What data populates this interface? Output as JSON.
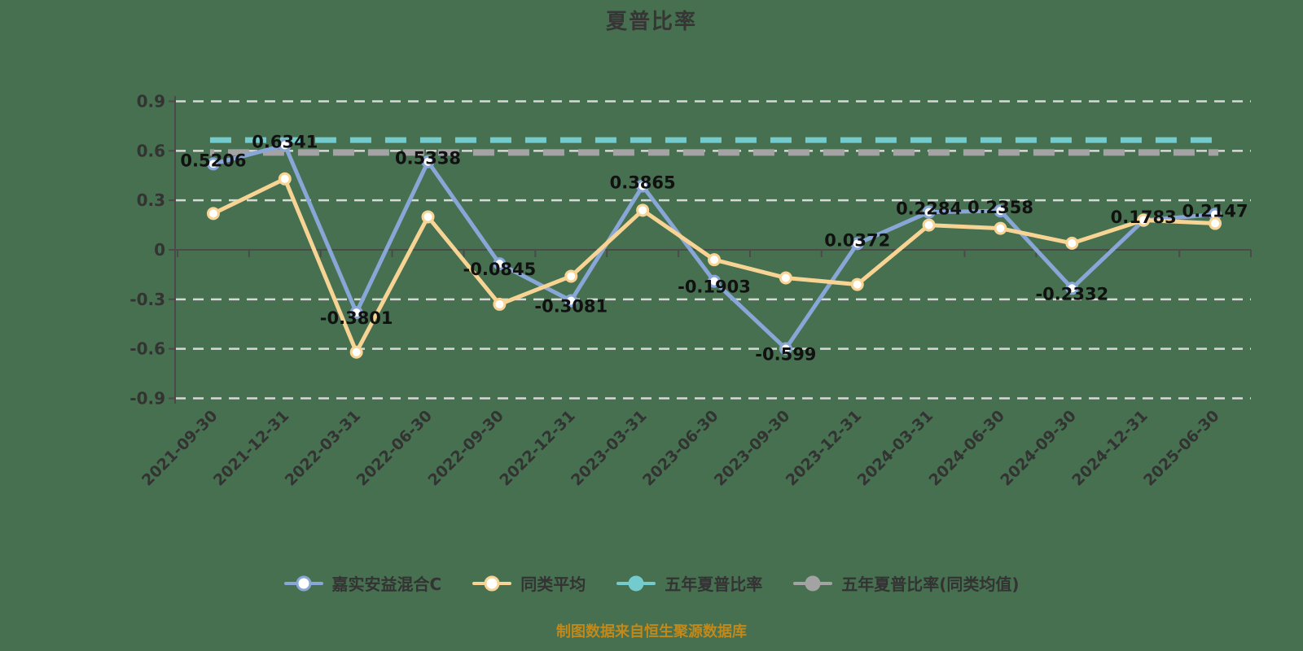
{
  "title": "夏普比率",
  "footer": "制图数据来自恒生聚源数据库",
  "colors": {
    "background": "#46704F",
    "title_text": "#363636",
    "axis_text": "#333333",
    "data_label": "#111111",
    "grid_line": "#D8D8D8",
    "axis_line": "#4A4A4A",
    "footer_text": "#C2891A",
    "marker_fill": "#FFFFFF"
  },
  "chart_data": {
    "type": "line",
    "title": "夏普比率",
    "xlabel": "",
    "ylabel": "",
    "categories": [
      "2021-09-30",
      "2021-12-31",
      "2022-03-31",
      "2022-06-30",
      "2022-09-30",
      "2022-12-31",
      "2023-03-31",
      "2023-06-30",
      "2023-09-30",
      "2023-12-31",
      "2024-03-31",
      "2024-06-30",
      "2024-09-30",
      "2024-12-31",
      "2025-06-30"
    ],
    "yticks": [
      0.9,
      0.6,
      0.3,
      0,
      -0.3,
      -0.6,
      -0.9
    ],
    "ylim": [
      -0.9,
      0.9
    ],
    "grid": "horizontal-dashed",
    "legend_position": "bottom",
    "series": [
      {
        "name": "嘉实安益混合C",
        "kind": "line",
        "color": "#88A6D6",
        "marker": "hollow-circle",
        "show_labels": true,
        "values": [
          0.5206,
          0.6341,
          -0.3801,
          0.5338,
          -0.0845,
          -0.3081,
          0.3865,
          -0.1903,
          -0.599,
          0.0372,
          0.2284,
          0.2358,
          -0.2332,
          0.1783,
          0.2147
        ]
      },
      {
        "name": "同类平均",
        "kind": "line",
        "color": "#F8D494",
        "marker": "hollow-circle",
        "show_labels": false,
        "values": [
          0.22,
          0.43,
          -0.62,
          0.2,
          -0.33,
          -0.16,
          0.24,
          -0.06,
          -0.17,
          -0.21,
          0.15,
          0.13,
          0.04,
          0.18,
          0.16
        ]
      },
      {
        "name": "五年夏普比率",
        "kind": "const-dashed",
        "color": "#74CBCE",
        "marker": "solid-circle",
        "value": 0.665,
        "width": 7
      },
      {
        "name": "五年夏普比率(同类均值)",
        "kind": "const-dashed",
        "color": "#A3A3A3",
        "marker": "solid-circle",
        "value": 0.59,
        "width": 8
      }
    ]
  }
}
